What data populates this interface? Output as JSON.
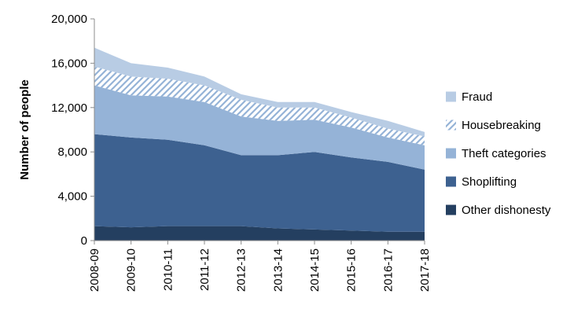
{
  "chart_data": {
    "type": "area",
    "stacked": true,
    "title": "",
    "xlabel": "",
    "ylabel": "Number of people",
    "categories": [
      "2008-09",
      "2009-10",
      "2010-11",
      "2011-12",
      "2012-13",
      "2013-14",
      "2014-15",
      "2015-16",
      "2016-17",
      "2017-18"
    ],
    "ylim": [
      0,
      20000
    ],
    "yticks": [
      0,
      4000,
      8000,
      12000,
      16000,
      20000
    ],
    "ytick_labels": [
      "0",
      "4,000",
      "8,000",
      "12,000",
      "16,000",
      "20,000"
    ],
    "grid": false,
    "legend_position": "right",
    "series": [
      {
        "name": "Other dishonesty",
        "color": "#243f60",
        "pattern": "solid",
        "values": [
          1300,
          1200,
          1300,
          1300,
          1300,
          1100,
          1000,
          900,
          800,
          800
        ]
      },
      {
        "name": "Shoplifting",
        "color": "#3d6190",
        "pattern": "solid",
        "values": [
          8300,
          8100,
          7800,
          7300,
          6400,
          6600,
          7000,
          6600,
          6300,
          5600
        ]
      },
      {
        "name": "Theft categories",
        "color": "#95b3d7",
        "pattern": "solid",
        "values": [
          4400,
          3800,
          3900,
          3900,
          3500,
          3100,
          2900,
          2700,
          2200,
          2200
        ]
      },
      {
        "name": "Housebreaking",
        "color": "#95b3d7",
        "pattern": "hatch",
        "values": [
          1700,
          1700,
          1600,
          1500,
          1500,
          1200,
          1100,
          900,
          800,
          800
        ]
      },
      {
        "name": "Fraud",
        "color": "#b8cce4",
        "pattern": "solid",
        "values": [
          1700,
          1200,
          1000,
          800,
          500,
          500,
          500,
          500,
          700,
          400
        ]
      }
    ],
    "legend_order": [
      "Fraud",
      "Housebreaking",
      "Theft categories",
      "Shoplifting",
      "Other dishonesty"
    ],
    "axis_color": "#8c8c8c"
  }
}
